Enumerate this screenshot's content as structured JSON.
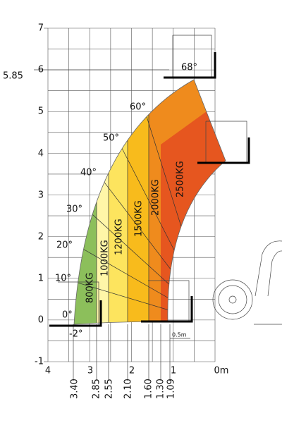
{
  "y_axis": {
    "labels": [
      "7",
      "6",
      "5.85",
      "5",
      "4",
      "3",
      "2",
      "1",
      "0",
      "-1"
    ]
  },
  "x_axis": {
    "labels": [
      "4",
      "3",
      "2",
      "1",
      "0m"
    ]
  },
  "reach_labels": [
    "3.40",
    "2.85",
    "2.55",
    "2.10",
    "1.60",
    "1.30",
    "1.09"
  ],
  "angles": [
    "-2°",
    "0°",
    "10°",
    "20°",
    "30°",
    "40°",
    "50°",
    "60°",
    "68°"
  ],
  "zones": [
    "800KG",
    "1000KG",
    "1200KG",
    "1500KG",
    "2000KG",
    "2500KG"
  ],
  "scale_note": "0.5m"
}
